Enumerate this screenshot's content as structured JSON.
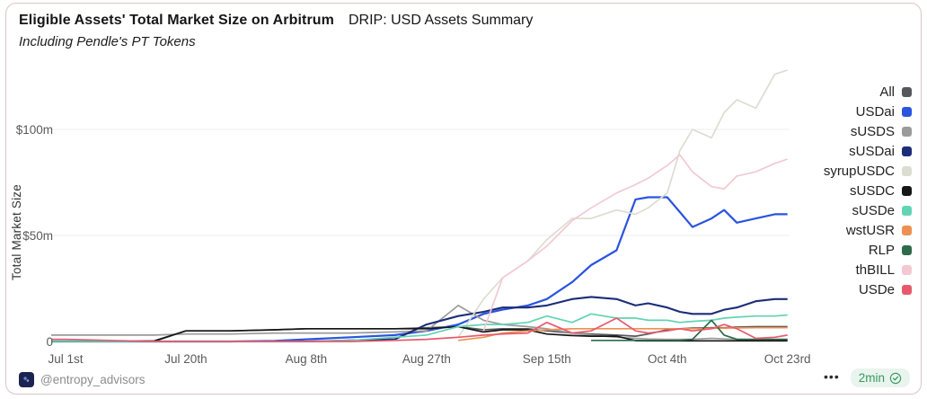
{
  "header": {
    "title_bold": "Eligible Assets' Total Market Size on Arbitrum",
    "title_regular": "DRIP: USD Assets Summary",
    "subtitle": "Including Pendle's PT Tokens"
  },
  "y_axis": {
    "label": "Total Market Size",
    "ticks": [
      {
        "label": "$100m",
        "value": 100
      },
      {
        "label": "$50m",
        "value": 50
      },
      {
        "label": "0",
        "value": 0
      }
    ]
  },
  "x_axis": {
    "ticks": [
      {
        "label": "Jul 1st",
        "day": 0
      },
      {
        "label": "Jul 20th",
        "day": 19
      },
      {
        "label": "Aug 8th",
        "day": 38
      },
      {
        "label": "Aug 27th",
        "day": 57
      },
      {
        "label": "Sep 15th",
        "day": 76
      },
      {
        "label": "Oct 4th",
        "day": 95
      },
      {
        "label": "Oct 23rd",
        "day": 114
      }
    ]
  },
  "chart_data": {
    "type": "line",
    "title": "Eligible Assets' Total Market Size on Arbitrum",
    "ylabel": "Total Market Size",
    "unit": "$m",
    "ylim": [
      0,
      130
    ],
    "grid": "horizontal",
    "legend_position": "right",
    "x_dates": [
      "Jul 1",
      "Jul 8",
      "Jul 15",
      "Jul 20",
      "Jul 27",
      "Aug 3",
      "Aug 8",
      "Aug 15",
      "Aug 22",
      "Aug 27",
      "Sep 1",
      "Sep 5",
      "Sep 8",
      "Sep 12",
      "Sep 15",
      "Sep 19",
      "Sep 22",
      "Sep 26",
      "Sep 29",
      "Oct 1",
      "Oct 4",
      "Oct 6",
      "Oct 8",
      "Oct 11",
      "Oct 13",
      "Oct 15",
      "Oct 18",
      "Oct 21",
      "Oct 23"
    ],
    "x_days": [
      0,
      7,
      14,
      19,
      26,
      33,
      38,
      45,
      52,
      57,
      62,
      66,
      69,
      73,
      76,
      80,
      83,
      87,
      90,
      92,
      95,
      97,
      99,
      102,
      104,
      106,
      109,
      112,
      114
    ],
    "series": [
      {
        "name": "All",
        "color": "#54575b",
        "width": 1.7,
        "values": [
          0,
          0,
          0,
          5,
          5,
          5.5,
          6,
          6,
          6,
          6.5,
          7,
          5.5,
          6,
          6,
          5,
          4,
          3.5,
          3,
          2.5,
          3.5,
          5.5,
          6,
          6.3,
          6.5,
          6.5,
          6.8,
          7,
          7,
          7
        ]
      },
      {
        "name": "USDai",
        "color": "#2b53df",
        "width": 2.2,
        "values": [
          0,
          0,
          0,
          0,
          0,
          0.3,
          1,
          2,
          3,
          5,
          8,
          13,
          15,
          17,
          20,
          28,
          36,
          43,
          67,
          68,
          68,
          61,
          54,
          58,
          62,
          56,
          58,
          60,
          60
        ]
      },
      {
        "name": "sUSDS",
        "color": "#9b9b9b",
        "width": 1.7,
        "values": [
          3,
          3,
          3,
          3.5,
          3.5,
          4,
          4,
          4,
          4.5,
          5,
          17,
          10,
          8,
          7,
          6,
          4,
          3,
          2,
          1.5,
          1.2,
          1,
          1,
          1,
          1.5,
          1.2,
          1,
          0.8,
          0.8,
          0.8
        ]
      },
      {
        "name": "sUSDai",
        "color": "#1c2d77",
        "width": 2.1,
        "values": [
          0,
          0,
          0,
          0,
          0,
          0,
          0,
          0.5,
          1,
          8,
          12,
          14,
          16,
          16,
          17,
          20,
          21,
          20,
          17,
          18,
          16,
          14,
          13,
          13,
          15,
          16,
          19,
          20,
          20
        ]
      },
      {
        "name": "syrupUSDC",
        "color": "#dcddd0",
        "width": 1.7,
        "values": [
          null,
          null,
          null,
          null,
          null,
          null,
          null,
          null,
          null,
          null,
          2,
          20,
          30,
          38,
          48,
          58,
          58,
          62,
          60,
          63,
          70,
          90,
          100,
          96,
          108,
          114,
          110,
          126,
          128
        ]
      },
      {
        "name": "sUSDC",
        "color": "#161616",
        "width": 1.7,
        "values": [
          0,
          0,
          0.3,
          5,
          5,
          5.5,
          6,
          6,
          6,
          6,
          7,
          4.5,
          5.5,
          5.5,
          3.5,
          2.8,
          2.5,
          2.5,
          0.4,
          0.3,
          0.3,
          0.3,
          0.3,
          0.3,
          0.3,
          0.3,
          0.3,
          0.3,
          0.3
        ]
      },
      {
        "name": "sUSDe",
        "color": "#62d3b4",
        "width": 1.7,
        "values": [
          0,
          0,
          0,
          0,
          0,
          0,
          0,
          0.5,
          2,
          3,
          7,
          8,
          8,
          9,
          12,
          9,
          13,
          11,
          11,
          10,
          10,
          9,
          9.5,
          10,
          11,
          11.5,
          12,
          12,
          12.5
        ]
      },
      {
        "name": "wstUSR",
        "color": "#ee9051",
        "width": 1.7,
        "values": [
          null,
          null,
          null,
          null,
          null,
          null,
          null,
          null,
          null,
          null,
          0.5,
          2,
          4,
          5,
          5.5,
          6,
          6,
          6,
          6,
          6,
          6,
          6,
          6,
          6.2,
          6.3,
          6.4,
          6.5,
          6.5,
          6.5
        ]
      },
      {
        "name": "RLP",
        "color": "#2e6a4b",
        "width": 1.7,
        "values": [
          null,
          null,
          null,
          null,
          null,
          null,
          null,
          null,
          null,
          null,
          null,
          null,
          null,
          null,
          null,
          null,
          0.5,
          0.5,
          0.5,
          0.5,
          0.5,
          0.5,
          1,
          10,
          3,
          1,
          1,
          1,
          1
        ]
      },
      {
        "name": "thBILL",
        "color": "#f2c9d3",
        "width": 1.7,
        "values": [
          null,
          null,
          null,
          null,
          null,
          null,
          null,
          null,
          null,
          null,
          null,
          5,
          30,
          38,
          45,
          57,
          63,
          70,
          74,
          77,
          83,
          88,
          80,
          73,
          72,
          78,
          80,
          84,
          86
        ]
      },
      {
        "name": "USDe",
        "color": "#e75a6e",
        "width": 1.7,
        "values": [
          1,
          0.5,
          0,
          0,
          0,
          0,
          0,
          0,
          0.5,
          1,
          2,
          3,
          3.5,
          4,
          9,
          4,
          5,
          11,
          5,
          4,
          5,
          6,
          5,
          6,
          8,
          6,
          1.5,
          2,
          3
        ]
      }
    ]
  },
  "footer": {
    "handle": "@entropy_advisors",
    "menu_dots": "•••",
    "badge_text": "2min",
    "badge_color": "#37975e"
  }
}
